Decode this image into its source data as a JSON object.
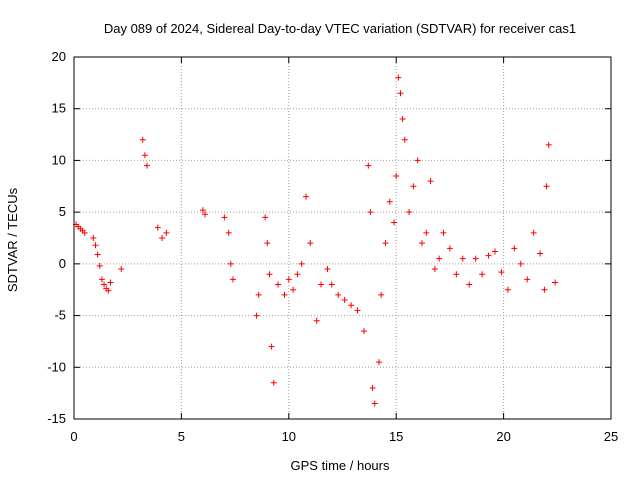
{
  "chart_data": {
    "type": "scatter",
    "title": "Day 089 of 2024, Sidereal Day-to-day VTEC variation (SDTVAR) for receiver cas1",
    "xlabel": "GPS time / hours",
    "ylabel": "SDTVAR / TECUs",
    "xlim": [
      0,
      25
    ],
    "ylim": [
      -15,
      20
    ],
    "xticks": [
      0,
      5,
      10,
      15,
      20,
      25
    ],
    "yticks": [
      -15,
      -10,
      -5,
      0,
      5,
      10,
      15,
      20
    ],
    "grid": true,
    "marker": "plus",
    "color": "#ff0000",
    "series": [
      {
        "name": "SDTVAR",
        "x": [
          0.1,
          0.2,
          0.3,
          0.4,
          0.5,
          0.9,
          1.0,
          1.1,
          1.2,
          1.3,
          1.4,
          1.5,
          1.6,
          1.7,
          2.2,
          3.2,
          3.3,
          3.4,
          3.9,
          4.1,
          4.3,
          6.0,
          6.1,
          7.0,
          7.2,
          7.3,
          7.4,
          8.5,
          8.6,
          8.9,
          9.0,
          9.1,
          9.2,
          9.3,
          9.5,
          9.8,
          10.0,
          10.2,
          10.4,
          10.6,
          10.8,
          11.0,
          11.3,
          11.5,
          11.8,
          12.0,
          12.3,
          12.6,
          12.9,
          13.2,
          13.5,
          13.7,
          13.8,
          13.9,
          14.0,
          14.2,
          14.3,
          14.5,
          14.7,
          14.9,
          15.0,
          15.1,
          15.2,
          15.3,
          15.4,
          15.6,
          15.8,
          16.0,
          16.2,
          16.4,
          16.6,
          16.8,
          17.0,
          17.2,
          17.5,
          17.8,
          18.1,
          18.4,
          18.7,
          19.0,
          19.3,
          19.6,
          19.9,
          20.2,
          20.5,
          20.8,
          21.1,
          21.4,
          21.7,
          21.9,
          22.0,
          22.1,
          22.4
        ],
        "y": [
          3.8,
          3.6,
          3.4,
          3.2,
          3.0,
          2.5,
          1.8,
          0.9,
          -0.2,
          -1.5,
          -2.0,
          -2.4,
          -2.6,
          -1.8,
          -0.5,
          12.0,
          10.5,
          9.5,
          3.5,
          2.5,
          3.0,
          5.2,
          4.8,
          4.5,
          3.0,
          0.0,
          -1.5,
          -5.0,
          -3.0,
          4.5,
          2.0,
          -1.0,
          -8.0,
          -11.5,
          -2.0,
          -3.0,
          -1.5,
          -2.5,
          -1.0,
          0.0,
          6.5,
          2.0,
          -5.5,
          -2.0,
          -0.5,
          -2.0,
          -3.0,
          -3.5,
          -4.0,
          -4.5,
          -6.5,
          9.5,
          5.0,
          -12.0,
          -13.5,
          -9.5,
          -3.0,
          2.0,
          6.0,
          4.0,
          8.5,
          18.0,
          16.5,
          14.0,
          12.0,
          5.0,
          7.5,
          10.0,
          2.0,
          3.0,
          8.0,
          -0.5,
          0.5,
          3.0,
          1.5,
          -1.0,
          0.5,
          -2.0,
          0.5,
          -1.0,
          0.8,
          1.2,
          -0.8,
          -2.5,
          1.5,
          0.0,
          -1.5,
          3.0,
          1.0,
          -2.5,
          7.5,
          11.5,
          -1.8
        ]
      }
    ]
  }
}
